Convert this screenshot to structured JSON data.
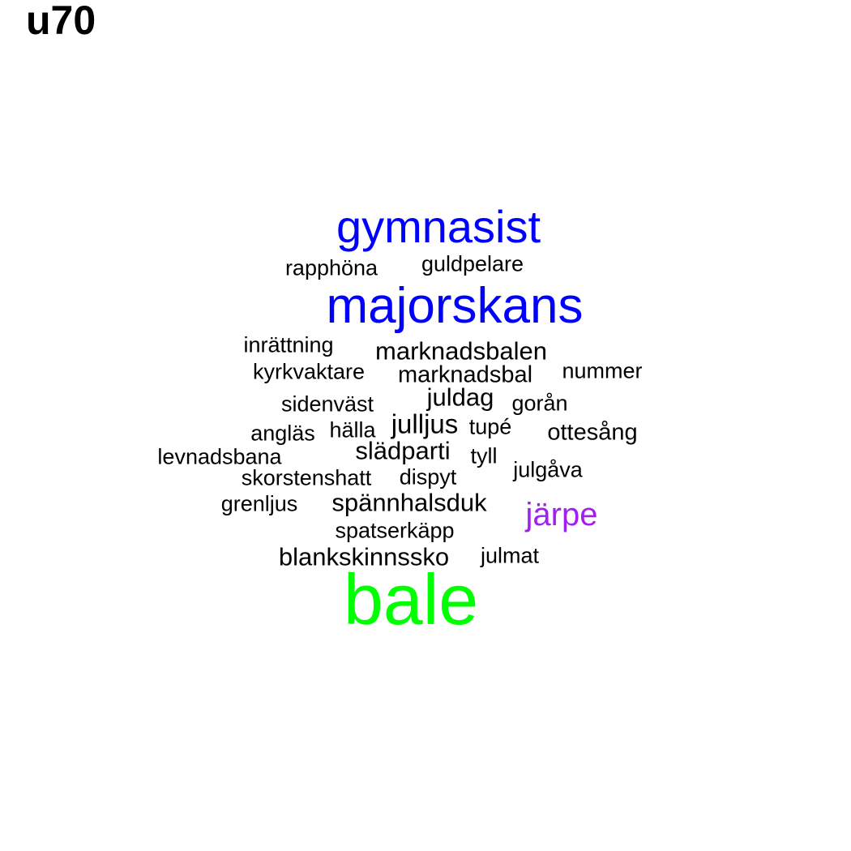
{
  "title": "u70",
  "colors": {
    "blue": "#0000ff",
    "green": "#00ff00",
    "purple": "#a020f0",
    "black": "#000000"
  },
  "words": [
    {
      "text": "bale",
      "color": "green",
      "weight": 10
    },
    {
      "text": "majorskans",
      "color": "blue",
      "weight": 7
    },
    {
      "text": "gymnasist",
      "color": "blue",
      "weight": 6
    },
    {
      "text": "järpe",
      "color": "purple",
      "weight": 5
    },
    {
      "text": "marknadsbalen",
      "color": "black",
      "weight": 3
    },
    {
      "text": "marknadsbal",
      "color": "black",
      "weight": 3
    },
    {
      "text": "juldag",
      "color": "black",
      "weight": 3
    },
    {
      "text": "julljus",
      "color": "black",
      "weight": 3
    },
    {
      "text": "slädparti",
      "color": "black",
      "weight": 3
    },
    {
      "text": "spännhalsduk",
      "color": "black",
      "weight": 3
    },
    {
      "text": "blankskinnssko",
      "color": "black",
      "weight": 3
    },
    {
      "text": "ottesång",
      "color": "black",
      "weight": 3
    },
    {
      "text": "guldpelare",
      "color": "black",
      "weight": 2
    },
    {
      "text": "rapphöna",
      "color": "black",
      "weight": 2
    },
    {
      "text": "inrättning",
      "color": "black",
      "weight": 2
    },
    {
      "text": "kyrkvaktare",
      "color": "black",
      "weight": 2
    },
    {
      "text": "nummer",
      "color": "black",
      "weight": 2
    },
    {
      "text": "sidenväst",
      "color": "black",
      "weight": 2
    },
    {
      "text": "gorån",
      "color": "black",
      "weight": 2
    },
    {
      "text": "angläs",
      "color": "black",
      "weight": 2
    },
    {
      "text": "hälla",
      "color": "black",
      "weight": 2
    },
    {
      "text": "tupé",
      "color": "black",
      "weight": 2
    },
    {
      "text": "levnadsbana",
      "color": "black",
      "weight": 2
    },
    {
      "text": "tyll",
      "color": "black",
      "weight": 2
    },
    {
      "text": "julgåva",
      "color": "black",
      "weight": 2
    },
    {
      "text": "skorstenshatt",
      "color": "black",
      "weight": 2
    },
    {
      "text": "dispyt",
      "color": "black",
      "weight": 2
    },
    {
      "text": "grenljus",
      "color": "black",
      "weight": 2
    },
    {
      "text": "spatserkäpp",
      "color": "black",
      "weight": 2
    },
    {
      "text": "julmat",
      "color": "black",
      "weight": 2
    }
  ]
}
